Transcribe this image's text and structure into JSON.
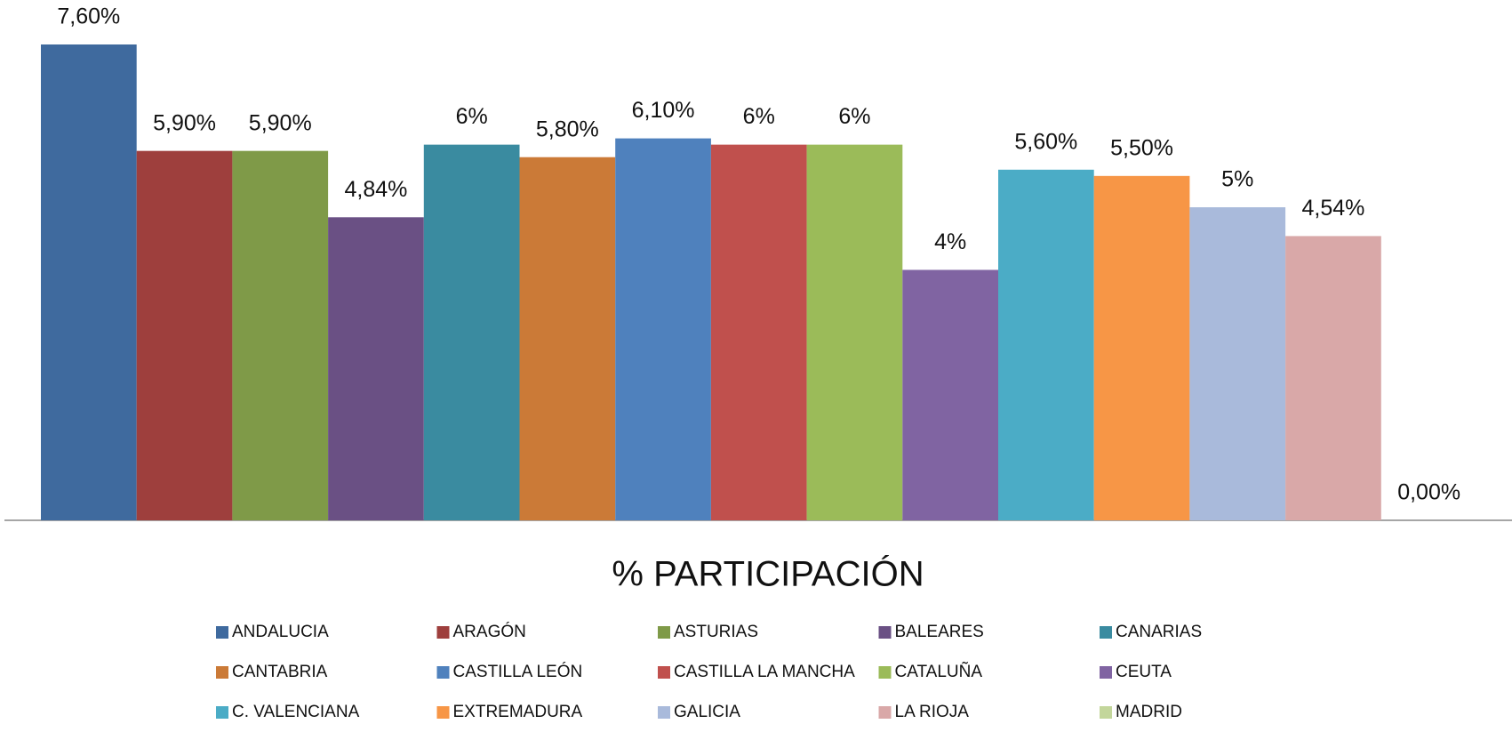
{
  "chart_data": {
    "type": "bar",
    "title": "% PARTICIPACIÓN",
    "series": [
      {
        "name": "ANDALUCIA",
        "color": "#3f6a9e",
        "values": [
          7.6
        ],
        "value_labels": [
          "7,60%"
        ]
      },
      {
        "name": "ARAGÓN",
        "color": "#9e3f3d",
        "values": [
          5.9
        ],
        "value_labels": [
          "5,90%"
        ]
      },
      {
        "name": "ASTURIAS",
        "color": "#7f9a48",
        "values": [
          5.9
        ],
        "value_labels": [
          "5,90%"
        ]
      },
      {
        "name": "BALEARES",
        "color": "#6a5084",
        "values": [
          4.84
        ],
        "value_labels": [
          "4,84%"
        ]
      },
      {
        "name": "CANARIAS",
        "color": "#3a8ba0",
        "values": [
          6
        ],
        "value_labels": [
          "6%"
        ]
      },
      {
        "name": "CANTABRIA",
        "color": "#cb7a37",
        "values": [
          5.8
        ],
        "value_labels": [
          "5,80%"
        ]
      },
      {
        "name": "CASTILLA LEÓN",
        "color": "#4f81bd",
        "values": [
          6.1
        ],
        "value_labels": [
          "6,10%"
        ]
      },
      {
        "name": "CASTILLA LA MANCHA",
        "color": "#c0504d",
        "values": [
          6
        ],
        "value_labels": [
          "6%"
        ]
      },
      {
        "name": "CATALUÑA",
        "color": "#9bbb59",
        "values": [
          6
        ],
        "value_labels": [
          "6%"
        ]
      },
      {
        "name": "CEUTA",
        "color": "#8064a2",
        "values": [
          4
        ],
        "value_labels": [
          "4%"
        ]
      },
      {
        "name": "C. VALENCIANA",
        "color": "#4bacc6",
        "values": [
          5.6
        ],
        "value_labels": [
          "5,60%"
        ]
      },
      {
        "name": "EXTREMADURA",
        "color": "#f79646",
        "values": [
          5.5
        ],
        "value_labels": [
          "5,50%"
        ]
      },
      {
        "name": "GALICIA",
        "color": "#a9badb",
        "values": [
          5
        ],
        "value_labels": [
          "5%"
        ]
      },
      {
        "name": "LA RIOJA",
        "color": "#d9a8a8",
        "values": [
          4.54
        ],
        "value_labels": [
          "4,54%"
        ]
      },
      {
        "name": "MADRID",
        "color": "#c3d69b",
        "values": [
          0
        ],
        "value_labels": [
          "0,00%"
        ]
      }
    ]
  }
}
